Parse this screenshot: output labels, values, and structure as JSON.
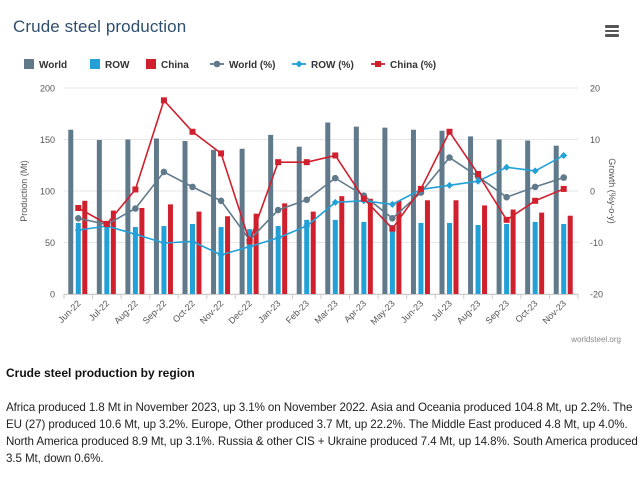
{
  "page": {
    "title": "Crude steel production",
    "menu_icon": "hamburger-menu-icon",
    "source_credit": "worldsteel.org"
  },
  "chart_data": {
    "type": "bar",
    "title": "Crude steel production",
    "categories": [
      "Jun-22",
      "Jul-22",
      "Aug-22",
      "Sep-22",
      "Oct-22",
      "Nov-22",
      "Dec-22",
      "Jan-23",
      "Feb-23",
      "Mar-23",
      "Apr-23",
      "May-23",
      "Jun-23",
      "Jul-23",
      "Aug-23",
      "Sep-23",
      "Oct-23",
      "Nov-23"
    ],
    "ylabel": "Production (Mt)",
    "ylim": [
      0,
      200
    ],
    "yticks": [
      0,
      50,
      100,
      150,
      200
    ],
    "y2label": "Growth (%y-o-y)",
    "y2lim": [
      -20,
      20
    ],
    "y2ticks": [
      -20,
      -10,
      0,
      10,
      20
    ],
    "grid": true,
    "legend_position": "top-left",
    "bar_series": [
      {
        "name": "World",
        "color": "#607a8c",
        "values": [
          159.5,
          149.5,
          150,
          151,
          148.5,
          140,
          141,
          154.5,
          143,
          166.5,
          162.5,
          161.5,
          159.5,
          158.5,
          153,
          150,
          149,
          144
        ]
      },
      {
        "name": "ROW",
        "color": "#22a0d8",
        "values": [
          69,
          71,
          65,
          66,
          68,
          65,
          63,
          66,
          72,
          72,
          70,
          67,
          69,
          69,
          67,
          68,
          70,
          68
        ]
      },
      {
        "name": "China",
        "color": "#d0202e",
        "values": [
          90.5,
          81,
          83.5,
          87,
          80,
          75.5,
          78,
          88,
          80,
          95,
          92.5,
          90.5,
          91,
          91,
          86,
          82,
          79,
          76
        ]
      }
    ],
    "line_series": [
      {
        "name": "World (%)",
        "color": "#607a8c",
        "marker": "circle",
        "values": [
          -5.3,
          -6.5,
          -3.4,
          3.7,
          0.8,
          -1.9,
          -9.5,
          -3.7,
          -1.7,
          2.5,
          -0.9,
          -5.3,
          -0.3,
          6.5,
          2.8,
          -1.2,
          0.8,
          2.6
        ]
      },
      {
        "name": "ROW (%)",
        "color": "#22a0d8",
        "marker": "diamond",
        "values": [
          -7.6,
          -6.8,
          -8.4,
          -10.1,
          -9.8,
          -12.4,
          -10.8,
          -9.1,
          -6.8,
          -2.2,
          -1.9,
          -2.6,
          0.3,
          1.1,
          1.9,
          4.6,
          3.9,
          6.9
        ]
      },
      {
        "name": "China (%)",
        "color": "#d0202e",
        "marker": "square",
        "values": [
          -3.3,
          -6.4,
          0.3,
          17.6,
          11.5,
          7.3,
          -9.8,
          5.6,
          5.6,
          6.9,
          -1.5,
          -7.3,
          0.4,
          11.5,
          3.3,
          -5.6,
          -1.9,
          0.4
        ]
      }
    ],
    "legend": [
      {
        "label": "World",
        "kind": "bar",
        "color": "#607a8c",
        "icon": "bar-square-icon"
      },
      {
        "label": "ROW",
        "kind": "bar",
        "color": "#22a0d8",
        "icon": "bar-square-icon"
      },
      {
        "label": "China",
        "kind": "bar",
        "color": "#d0202e",
        "icon": "bar-square-icon"
      },
      {
        "label": "World (%)",
        "kind": "line",
        "color": "#607a8c",
        "marker": "circle",
        "icon": "line-circle-icon"
      },
      {
        "label": "ROW (%)",
        "kind": "line",
        "color": "#22a0d8",
        "marker": "diamond",
        "icon": "line-diamond-icon"
      },
      {
        "label": "China (%)",
        "kind": "line",
        "color": "#d0202e",
        "marker": "square",
        "icon": "line-square-icon"
      }
    ]
  },
  "region_section": {
    "heading": "Crude steel production by region",
    "body": "Africa produced 1.8 Mt in November 2023, up 3.1% on November 2022. Asia and Oceania produced 104.8 Mt, up 2.2%. The EU (27) produced 10.6 Mt, up 3.2%. Europe, Other produced 3.7 Mt, up 22.2%. The Middle East produced 4.8 Mt, up 4.0%. North America produced 8.9 Mt, up 3.1%. Russia & other CIS + Ukraine produced 7.4 Mt, up 14.8%. South America produced 3.5 Mt, down 0.6%."
  }
}
